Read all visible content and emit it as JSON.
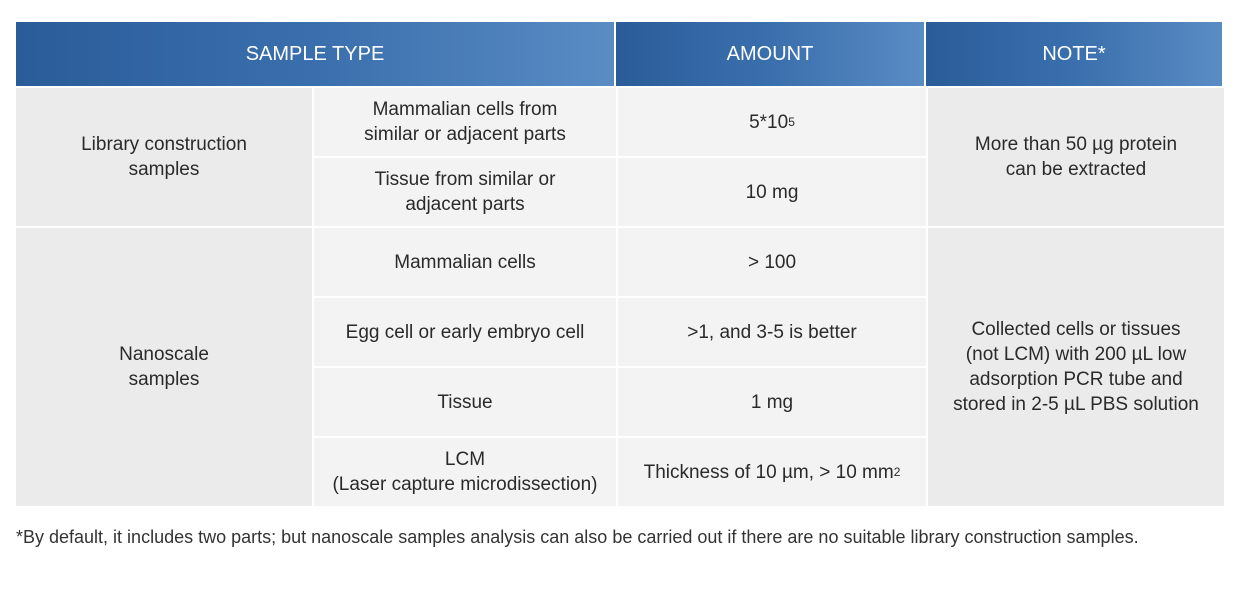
{
  "header": {
    "col1": "SAMPLE TYPE",
    "col2": "AMOUNT",
    "col3": "NOTE*"
  },
  "groups": [
    {
      "label": "Library construction\nsamples",
      "note": "More than 50 µg protein\ncan be extracted",
      "rows": [
        {
          "type": "Mammalian cells from\nsimilar or adjacent parts",
          "amount": "5*10",
          "amount_sup": "5"
        },
        {
          "type": "Tissue from similar or\nadjacent parts",
          "amount": "10 mg"
        }
      ]
    },
    {
      "label": "Nanoscale\nsamples",
      "note": "Collected cells or tissues\n(not LCM) with 200 µL low\nadsorption PCR tube and\nstored in 2-5 µL PBS solution",
      "rows": [
        {
          "type": "Mammalian cells",
          "amount": "> 100"
        },
        {
          "type": "Egg cell or early embryo cell",
          "amount": ">1, and 3-5 is better"
        },
        {
          "type": "Tissue",
          "amount": "1 mg"
        },
        {
          "type": "LCM\n(Laser capture microdissection)",
          "amount": "Thickness of 10 µm, > 10 mm",
          "amount_sup": "2"
        }
      ]
    }
  ],
  "footnote": "*By default, it includes two parts; but nanoscale samples analysis can also be carried out if there are no suitable library construction samples."
}
